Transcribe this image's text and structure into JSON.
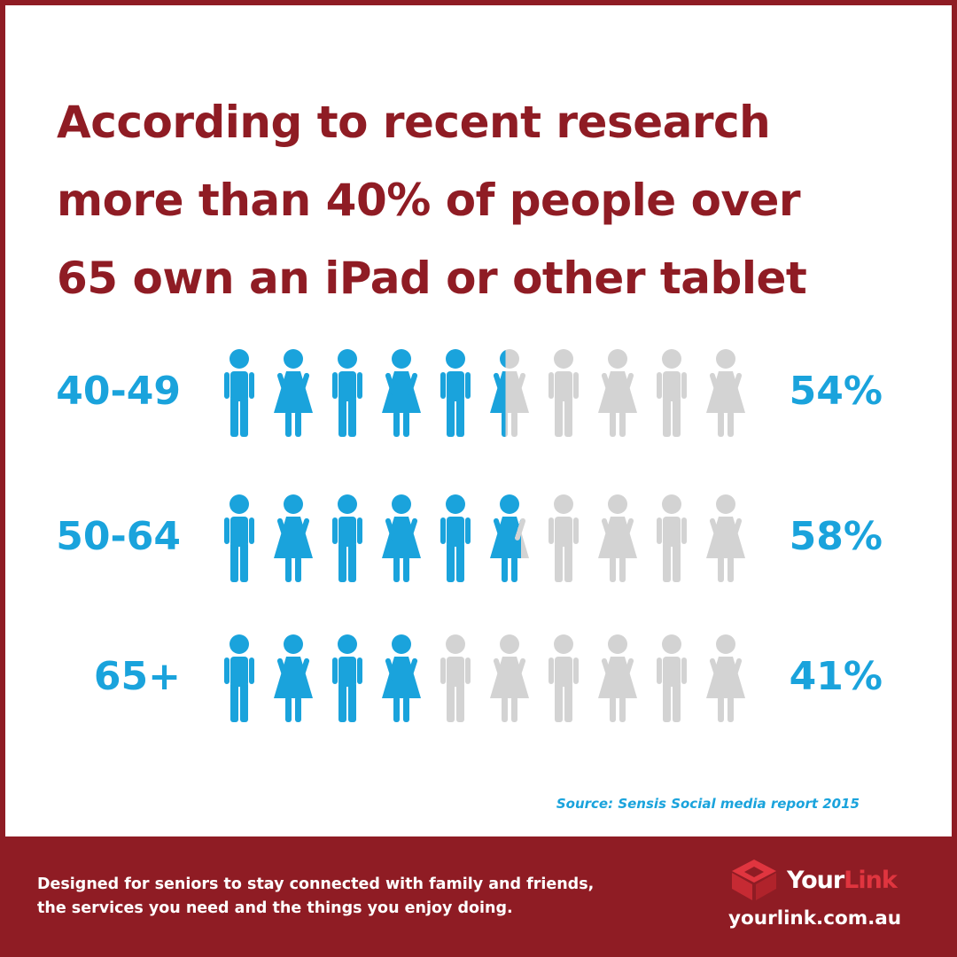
{
  "headline": {
    "line1": "According to recent research",
    "line2": "more than 40% of people over",
    "line3": "65 own an iPad or other tablet"
  },
  "chart_data": {
    "type": "pictograph",
    "icons_per_row": 10,
    "pattern": [
      "man",
      "woman",
      "man",
      "woman",
      "man",
      "woman",
      "man",
      "woman",
      "man",
      "woman"
    ],
    "colors": {
      "filled": "#1aa3dc",
      "empty": "#d3d3d3"
    },
    "rows": [
      {
        "category": "40-49",
        "label": "54%",
        "value": 54
      },
      {
        "category": "50-64",
        "label": "58%",
        "value": 58
      },
      {
        "category": "65+",
        "label": "41%",
        "value": 41
      }
    ]
  },
  "source": "Source: Sensis Social media report 2015",
  "footer": {
    "line1": "Designed for seniors to stay connected with family and friends,",
    "line2": "the services you need and the things you enjoy doing.",
    "logo_your": "Your",
    "logo_link": "Link",
    "url": "yourlink.com.au"
  },
  "colors": {
    "brand": "#8f1c24",
    "accent": "#1aa3dc",
    "logo_red": "#e0353f"
  },
  "logo_icon": "cube-icon"
}
